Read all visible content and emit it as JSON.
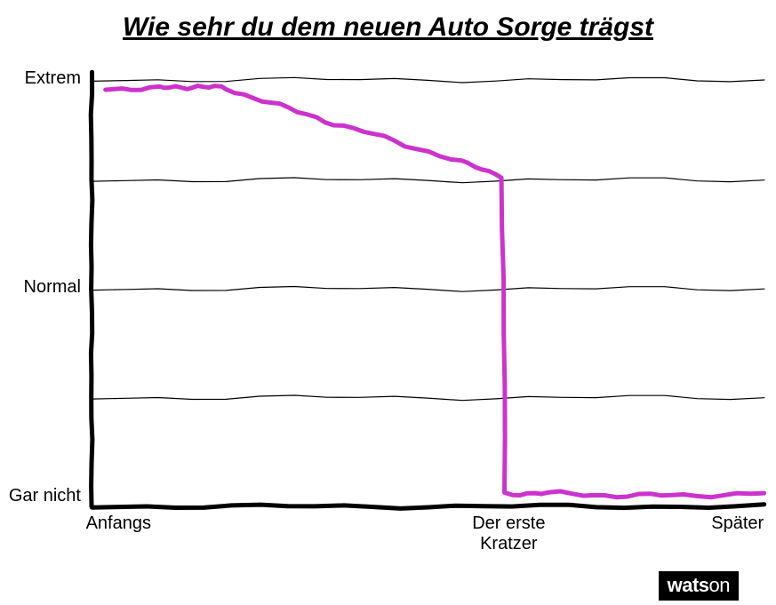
{
  "title": "Wie sehr du dem neuen Auto Sorge trägst",
  "chart": {
    "type": "line",
    "background_color": "#ffffff",
    "axis_color": "#000000",
    "axis_stroke_width": 5,
    "grid_color": "#000000",
    "grid_stroke_width": 1.2,
    "line_color": "#cc33cc",
    "line_stroke_width": 5,
    "font_family": "handwritten",
    "title_fontsize": 30,
    "label_fontsize": 20,
    "xlim": [
      0,
      100
    ],
    "ylim": [
      0,
      100
    ],
    "y_gridlines": [
      25,
      50,
      75,
      98
    ],
    "y_ticks": [
      {
        "value": 98,
        "label": "Extrem"
      },
      {
        "value": 50,
        "label": "Normal"
      },
      {
        "value": 2,
        "label": "Gar nicht"
      }
    ],
    "x_ticks": [
      {
        "value": 4,
        "label": "Anfangs"
      },
      {
        "value": 62,
        "label": "Der erste\nKratzer"
      },
      {
        "value": 96,
        "label": "Später"
      }
    ],
    "series": {
      "points": [
        [
          2,
          96
        ],
        [
          10,
          96
        ],
        [
          15,
          96.5
        ],
        [
          20,
          96
        ],
        [
          28,
          92
        ],
        [
          36,
          88
        ],
        [
          45,
          84
        ],
        [
          55,
          79
        ],
        [
          61,
          76
        ],
        [
          61.5,
          3
        ],
        [
          68,
          3
        ],
        [
          78,
          2.5
        ],
        [
          88,
          2.5
        ],
        [
          100,
          3
        ]
      ],
      "color": "#cc33cc",
      "stroke_width": 5
    }
  },
  "watermark": {
    "bold_part": "wats",
    "thin_part": "on",
    "bg_color": "#000000",
    "fg_color": "#ffffff"
  }
}
